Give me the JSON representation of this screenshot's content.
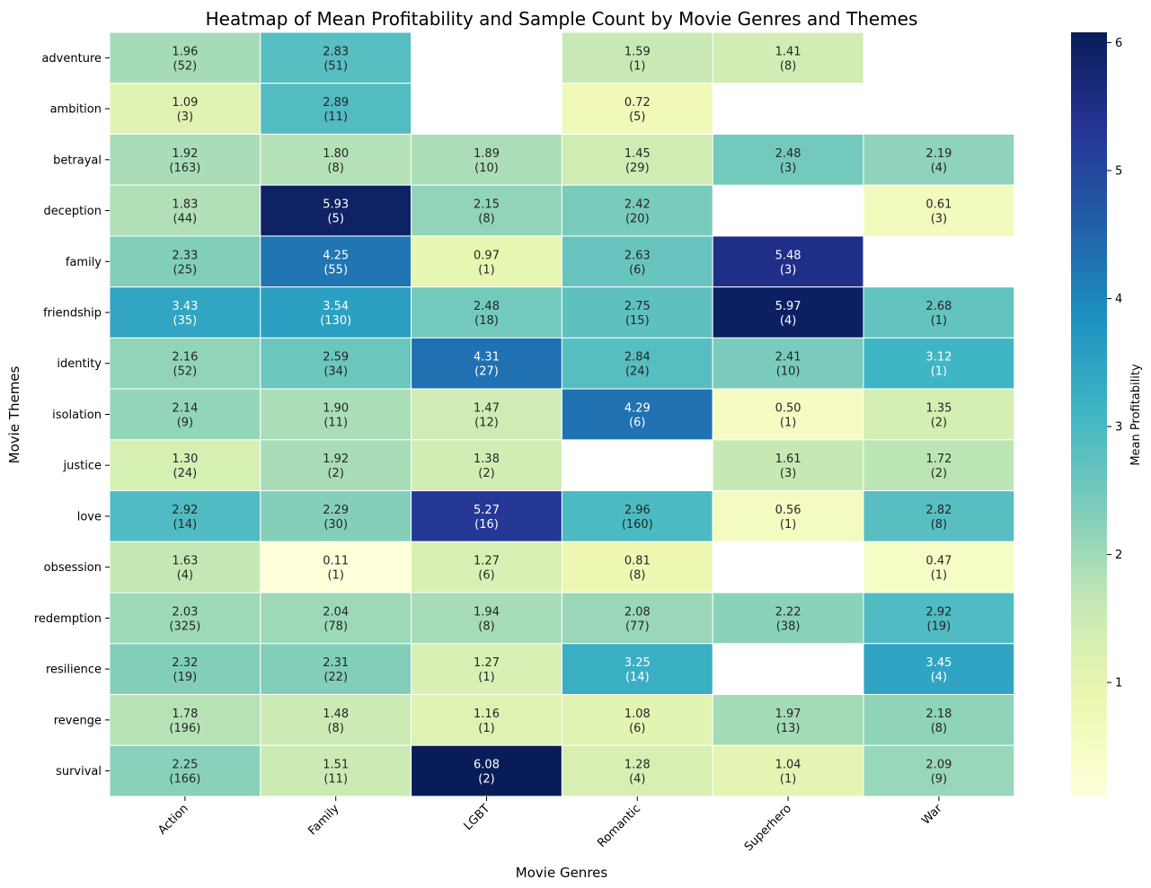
{
  "chart_data": {
    "type": "heatmap",
    "title": "Heatmap of Mean Profitability and Sample Count by Movie Genres and Themes",
    "xlabel": "Movie Genres",
    "ylabel": "Movie Themes",
    "colorbar_label": "Mean Profitability",
    "colorbar_ticks": [
      1,
      2,
      3,
      4,
      5,
      6
    ],
    "color_range": [
      0.11,
      6.08
    ],
    "colormap": "YlGnBu",
    "x_categories": [
      "Action",
      "Family",
      "LGBT",
      "Romantic",
      "Superhero",
      "War"
    ],
    "y_categories": [
      "adventure",
      "ambition",
      "betrayal",
      "deception",
      "family",
      "friendship",
      "identity",
      "isolation",
      "justice",
      "love",
      "obsession",
      "redemption",
      "resilience",
      "revenge",
      "survival"
    ],
    "values": [
      [
        "1.96",
        "2.83",
        null,
        "1.59",
        "1.41",
        null
      ],
      [
        "1.09",
        "2.89",
        null,
        "0.72",
        null,
        null
      ],
      [
        "1.92",
        "1.80",
        "1.89",
        "1.45",
        "2.48",
        "2.19"
      ],
      [
        "1.83",
        "5.93",
        "2.15",
        "2.42",
        null,
        "0.61"
      ],
      [
        "2.33",
        "4.25",
        "0.97",
        "2.63",
        "5.48",
        null
      ],
      [
        "3.43",
        "3.54",
        "2.48",
        "2.75",
        "5.97",
        "2.68"
      ],
      [
        "2.16",
        "2.59",
        "4.31",
        "2.84",
        "2.41",
        "3.12"
      ],
      [
        "2.14",
        "1.90",
        "1.47",
        "4.29",
        "0.50",
        "1.35"
      ],
      [
        "1.30",
        "1.92",
        "1.38",
        null,
        "1.61",
        "1.72"
      ],
      [
        "2.92",
        "2.29",
        "5.27",
        "2.96",
        "0.56",
        "2.82"
      ],
      [
        "1.63",
        "0.11",
        "1.27",
        "0.81",
        null,
        "0.47"
      ],
      [
        "2.03",
        "2.04",
        "1.94",
        "2.08",
        "2.22",
        "2.92"
      ],
      [
        "2.32",
        "2.31",
        "1.27",
        "3.25",
        null,
        "3.45"
      ],
      [
        "1.78",
        "1.48",
        "1.16",
        "1.08",
        "1.97",
        "2.18"
      ],
      [
        "2.25",
        "1.51",
        "6.08",
        "1.28",
        "1.04",
        "2.09"
      ]
    ],
    "counts": [
      [
        "(52)",
        "(51)",
        null,
        "(1)",
        "(8)",
        null
      ],
      [
        "(3)",
        "(11)",
        null,
        "(5)",
        null,
        null
      ],
      [
        "(163)",
        "(8)",
        "(10)",
        "(29)",
        "(3)",
        "(4)"
      ],
      [
        "(44)",
        "(5)",
        "(8)",
        "(20)",
        null,
        "(3)"
      ],
      [
        "(25)",
        "(55)",
        "(1)",
        "(6)",
        "(3)",
        null
      ],
      [
        "(35)",
        "(130)",
        "(18)",
        "(15)",
        "(4)",
        "(1)"
      ],
      [
        "(52)",
        "(34)",
        "(27)",
        "(24)",
        "(10)",
        "(1)"
      ],
      [
        "(9)",
        "(11)",
        "(12)",
        "(6)",
        "(1)",
        "(2)"
      ],
      [
        "(24)",
        "(2)",
        "(2)",
        null,
        "(3)",
        "(2)"
      ],
      [
        "(14)",
        "(30)",
        "(16)",
        "(160)",
        "(1)",
        "(8)"
      ],
      [
        "(4)",
        "(1)",
        "(6)",
        "(8)",
        null,
        "(1)"
      ],
      [
        "(325)",
        "(78)",
        "(8)",
        "(77)",
        "(38)",
        "(19)"
      ],
      [
        "(19)",
        "(22)",
        "(1)",
        "(14)",
        null,
        "(4)"
      ],
      [
        "(196)",
        "(8)",
        "(1)",
        "(6)",
        "(13)",
        "(8)"
      ],
      [
        "(166)",
        "(11)",
        "(2)",
        "(4)",
        "(1)",
        "(9)"
      ]
    ]
  }
}
